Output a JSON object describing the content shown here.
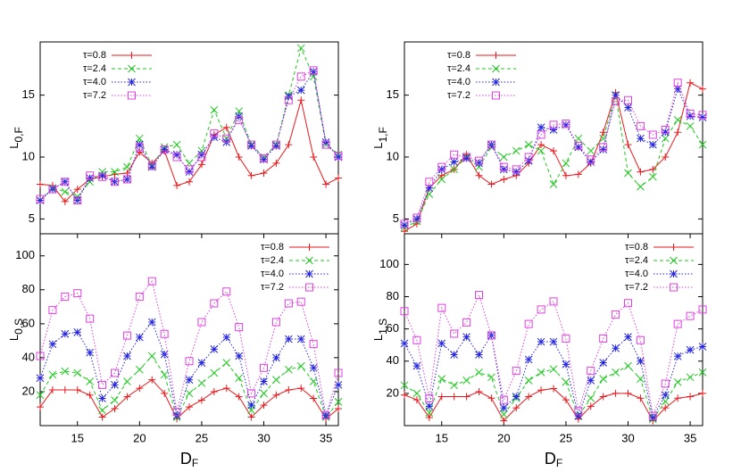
{
  "chart_data": [
    {
      "type": "line",
      "ylabel": {
        "text": "L",
        "subscript": "0,F"
      },
      "x": [
        12,
        13,
        14,
        15,
        16,
        17,
        18,
        19,
        20,
        21,
        22,
        23,
        24,
        25,
        26,
        27,
        28,
        29,
        30,
        31,
        32,
        33,
        34,
        35,
        36
      ],
      "xlim": [
        12,
        36
      ],
      "ylim": [
        3.8,
        19.3
      ],
      "yticks": [
        5,
        10,
        15
      ],
      "legend": "upper-left",
      "series": [
        {
          "name": "τ=0.8",
          "color": "#e8191c",
          "marker": "plus",
          "dash": "solid",
          "values": [
            7.8,
            7.7,
            6.4,
            7.4,
            8.2,
            8.4,
            8.6,
            8.7,
            10.4,
            9.5,
            10.5,
            7.7,
            8.0,
            9.4,
            11.8,
            12.4,
            10.0,
            8.5,
            8.7,
            9.5,
            11.0,
            14.6,
            10.0,
            7.8,
            8.3
          ]
        },
        {
          "name": "τ=2.4",
          "color": "#1ec81e",
          "marker": "cross",
          "dash": "dashed",
          "values": [
            6.5,
            7.5,
            7.2,
            6.8,
            8.0,
            8.8,
            8.8,
            9.2,
            11.5,
            9.3,
            10.8,
            11.0,
            9.5,
            10.5,
            13.8,
            11.5,
            13.7,
            11.0,
            10.0,
            11.0,
            15.0,
            18.8,
            16.5,
            11.0,
            10.2
          ]
        },
        {
          "name": "τ=4.0",
          "color": "#2424e0",
          "marker": "star",
          "dash": "dotted",
          "values": [
            6.5,
            7.4,
            8.0,
            6.5,
            8.3,
            8.5,
            8.0,
            8.2,
            11.0,
            9.2,
            10.6,
            10.2,
            8.8,
            10.2,
            11.6,
            11.2,
            13.3,
            10.9,
            9.8,
            10.9,
            14.9,
            15.4,
            16.9,
            11.2,
            10.0
          ]
        },
        {
          "name": "τ=7.2",
          "color": "#e040e0",
          "marker": "square",
          "dash": "dotted",
          "values": [
            6.6,
            7.4,
            8.0,
            6.5,
            8.5,
            8.4,
            8.0,
            8.2,
            10.8,
            9.3,
            10.6,
            10.0,
            9.0,
            10.0,
            11.9,
            11.5,
            13.0,
            11.0,
            9.9,
            11.0,
            14.6,
            16.5,
            17.0,
            11.0,
            10.1
          ]
        }
      ]
    },
    {
      "type": "line",
      "ylabel": {
        "text": "L",
        "subscript": "1,F"
      },
      "x": [
        12,
        13,
        14,
        15,
        16,
        17,
        18,
        19,
        20,
        21,
        22,
        23,
        24,
        25,
        26,
        27,
        28,
        29,
        30,
        31,
        32,
        33,
        34,
        35,
        36
      ],
      "xlim": [
        12,
        36
      ],
      "ylim": [
        3.8,
        19.3
      ],
      "yticks": [
        5,
        10,
        15
      ],
      "legend": "upper-left",
      "series": [
        {
          "name": "τ=0.8",
          "color": "#e8191c",
          "marker": "plus",
          "dash": "solid",
          "values": [
            4.0,
            4.6,
            7.5,
            8.5,
            9.0,
            10.2,
            8.5,
            7.8,
            8.2,
            8.5,
            9.5,
            11.0,
            10.5,
            8.5,
            8.6,
            9.5,
            12.0,
            15.2,
            11.0,
            8.8,
            9.0,
            10.0,
            12.0,
            16.0,
            15.5
          ]
        },
        {
          "name": "τ=2.4",
          "color": "#1ec81e",
          "marker": "cross",
          "dash": "dashed",
          "values": [
            4.3,
            4.8,
            7.0,
            8.2,
            9.0,
            10.0,
            9.2,
            10.8,
            10.0,
            10.5,
            11.0,
            10.5,
            7.8,
            9.5,
            11.5,
            10.5,
            11.5,
            15.0,
            8.7,
            7.6,
            8.4,
            11.5,
            13.0,
            12.5,
            11.0
          ]
        },
        {
          "name": "τ=4.0",
          "color": "#2424e0",
          "marker": "star",
          "dash": "dotted",
          "values": [
            4.5,
            5.0,
            7.5,
            9.0,
            9.6,
            9.9,
            9.5,
            11.0,
            9.0,
            8.8,
            9.7,
            12.4,
            12.2,
            12.6,
            10.8,
            9.6,
            10.6,
            15.0,
            14.0,
            11.5,
            11.0,
            12.0,
            15.5,
            13.3,
            13.2
          ]
        },
        {
          "name": "τ=7.2",
          "color": "#e040e0",
          "marker": "square",
          "dash": "dotted",
          "values": [
            4.6,
            5.1,
            8.0,
            9.2,
            10.2,
            10.0,
            9.7,
            11.0,
            9.2,
            9.0,
            10.0,
            11.8,
            12.6,
            12.7,
            10.9,
            9.8,
            10.8,
            14.5,
            14.6,
            12.5,
            11.8,
            12.2,
            16.0,
            13.5,
            13.4
          ]
        }
      ]
    },
    {
      "type": "line",
      "ylabel": {
        "text": "L",
        "subscript": "0,S"
      },
      "xlabel": {
        "text": "D",
        "subscript": "F"
      },
      "x": [
        12,
        13,
        14,
        15,
        16,
        17,
        18,
        19,
        20,
        21,
        22,
        23,
        24,
        25,
        26,
        27,
        28,
        29,
        30,
        31,
        32,
        33,
        34,
        35,
        36
      ],
      "xlim": [
        12,
        36
      ],
      "xticks": [
        15,
        20,
        25,
        30,
        35
      ],
      "ylim": [
        0,
        113
      ],
      "yticks": [
        20,
        40,
        60,
        80,
        100
      ],
      "legend": "upper-right",
      "series": [
        {
          "name": "τ=0.8",
          "color": "#e8191c",
          "marker": "plus",
          "dash": "solid",
          "values": [
            11,
            21,
            21,
            21,
            18,
            5,
            10,
            17,
            22,
            27,
            19,
            4,
            11,
            15,
            20,
            22,
            17,
            5,
            12,
            18,
            21,
            22,
            16,
            4,
            10
          ]
        },
        {
          "name": "τ=2.4",
          "color": "#1ec81e",
          "marker": "cross",
          "dash": "dashed",
          "values": [
            18,
            30,
            32,
            31,
            26,
            9,
            15,
            26,
            33,
            41,
            30,
            5,
            19,
            25,
            31,
            37,
            28,
            9,
            19,
            27,
            33,
            35,
            26,
            5,
            14
          ]
        },
        {
          "name": "τ=4.0",
          "color": "#2424e0",
          "marker": "star",
          "dash": "dotted",
          "values": [
            28,
            48,
            54,
            55,
            43,
            16,
            24,
            41,
            52,
            61,
            42,
            6,
            27,
            37,
            45,
            52,
            41,
            12,
            26,
            40,
            51,
            51,
            34,
            6,
            24
          ]
        },
        {
          "name": "τ=7.2",
          "color": "#e040e0",
          "marker": "square",
          "dash": "dotted",
          "values": [
            41,
            68,
            76,
            78,
            63,
            24,
            31,
            53,
            76,
            85,
            54,
            8,
            38,
            61,
            72,
            79,
            58,
            19,
            34,
            61,
            72,
            73,
            48,
            6,
            31
          ]
        }
      ]
    },
    {
      "type": "line",
      "ylabel": {
        "text": "L",
        "subscript": "1,S"
      },
      "xlabel": {
        "text": "D",
        "subscript": "F"
      },
      "x": [
        12,
        13,
        14,
        15,
        16,
        17,
        18,
        19,
        20,
        21,
        22,
        23,
        24,
        25,
        26,
        27,
        28,
        29,
        30,
        31,
        32,
        33,
        34,
        35,
        36
      ],
      "xlim": [
        12,
        36
      ],
      "xticks": [
        15,
        20,
        25,
        30,
        35
      ],
      "ylim": [
        0,
        119
      ],
      "yticks": [
        20,
        40,
        60,
        80,
        100
      ],
      "legend": "upper-right",
      "series": [
        {
          "name": "τ=0.8",
          "color": "#e8191c",
          "marker": "plus",
          "dash": "solid",
          "values": [
            19,
            16,
            5,
            18,
            18,
            18,
            21,
            17,
            3,
            11,
            18,
            22,
            23,
            16,
            4,
            12,
            18,
            20,
            20,
            17,
            3,
            11,
            17,
            18,
            20
          ]
        },
        {
          "name": "τ=2.4",
          "color": "#1ec81e",
          "marker": "cross",
          "dash": "dashed",
          "values": [
            25,
            20,
            8,
            29,
            25,
            28,
            33,
            30,
            7,
            17,
            28,
            33,
            35,
            27,
            6,
            17,
            29,
            33,
            37,
            29,
            4,
            15,
            27,
            30,
            33
          ]
        },
        {
          "name": "τ=4.0",
          "color": "#2424e0",
          "marker": "star",
          "dash": "dotted",
          "values": [
            51,
            37,
            12,
            51,
            44,
            55,
            44,
            56,
            11,
            18,
            41,
            52,
            52,
            38,
            6,
            28,
            39,
            48,
            55,
            40,
            5,
            19,
            43,
            47,
            49
          ]
        },
        {
          "name": "τ=7.2",
          "color": "#e040e0",
          "marker": "square",
          "dash": "dotted",
          "values": [
            71,
            53,
            17,
            73,
            57,
            64,
            81,
            56,
            16,
            34,
            63,
            72,
            77,
            54,
            9,
            34,
            54,
            69,
            76,
            53,
            6,
            26,
            63,
            68,
            72
          ]
        }
      ]
    }
  ]
}
